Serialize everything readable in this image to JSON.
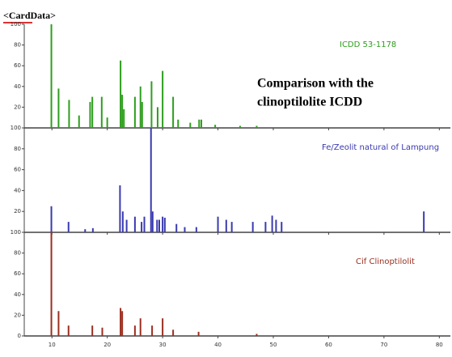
{
  "header": "<CardData>",
  "note": [
    "Comparison with the",
    "clinoptilolite ICDD"
  ],
  "chart_data": [
    {
      "type": "bar",
      "label": "ICDD 53-1178",
      "color": "#2e9e1e",
      "x": [
        9.9,
        11.2,
        13.1,
        14.9,
        16.9,
        17.3,
        19.0,
        20.0,
        22.4,
        22.7,
        23.0,
        25.0,
        26.0,
        26.3,
        28.0,
        29.1,
        30.0,
        31.9,
        32.8,
        35.0,
        36.6,
        37.0,
        39.5,
        44.0,
        47.0
      ],
      "values": [
        100,
        38,
        27,
        12,
        25,
        30,
        30,
        10,
        65,
        32,
        18,
        30,
        40,
        25,
        45,
        20,
        55,
        30,
        8,
        5,
        8,
        8,
        3,
        2,
        2
      ],
      "xlim": [
        5,
        82
      ],
      "ylim": [
        0,
        100
      ],
      "yticks": [
        20,
        40,
        60,
        80,
        100
      ]
    },
    {
      "type": "bar",
      "label": "Fe/Zeolit natural of Lampung",
      "color": "#3a3ab0",
      "x": [
        9.9,
        13.0,
        16.0,
        17.4,
        22.3,
        22.8,
        23.5,
        25.0,
        26.2,
        26.7,
        27.9,
        28.2,
        29.0,
        29.4,
        30.0,
        30.4,
        32.5,
        34.0,
        36.1,
        40.0,
        41.5,
        42.5,
        46.3,
        48.6,
        49.8,
        50.5,
        51.5,
        77.2
      ],
      "values": [
        25,
        10,
        3,
        4,
        45,
        20,
        12,
        15,
        10,
        15,
        100,
        20,
        12,
        12,
        15,
        14,
        8,
        5,
        5,
        15,
        12,
        10,
        10,
        10,
        16,
        12,
        10,
        20
      ],
      "xlim": [
        5,
        82
      ],
      "ylim": [
        0,
        100
      ],
      "yticks": [
        20,
        40,
        60,
        80,
        100
      ]
    },
    {
      "type": "bar",
      "label": "Cif Clinoptilolit",
      "color": "#9b2f1f",
      "x": [
        9.9,
        11.2,
        13.0,
        17.3,
        19.1,
        22.4,
        22.7,
        25.0,
        26.0,
        28.1,
        30.0,
        31.9,
        36.5,
        47.0
      ],
      "values": [
        100,
        24,
        10,
        10,
        8,
        27,
        24,
        10,
        17,
        10,
        17,
        6,
        4,
        2
      ],
      "xlim": [
        5,
        82
      ],
      "ylim": [
        0,
        100
      ],
      "yticks": [
        0,
        20,
        40,
        60,
        80,
        100
      ],
      "xticks": [
        10,
        20,
        30,
        40,
        50,
        60,
        70,
        80
      ]
    }
  ]
}
